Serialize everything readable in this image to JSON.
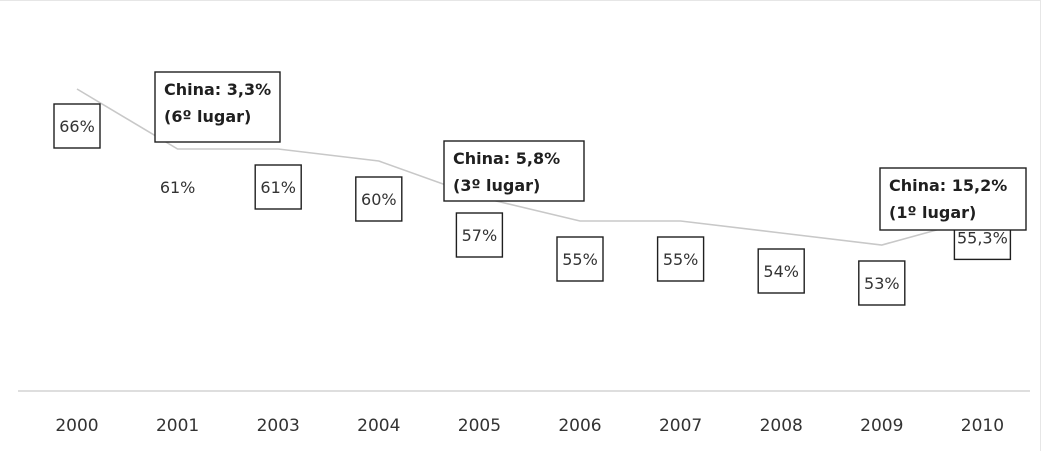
{
  "chart_data": {
    "type": "line",
    "categories": [
      "2000",
      "2001",
      "2003",
      "2004",
      "2005",
      "2006",
      "2007",
      "2008",
      "2009",
      "2010"
    ],
    "values": [
      66,
      61,
      61,
      60,
      57,
      55,
      55,
      54,
      53,
      55.3
    ],
    "data_labels": [
      "66%",
      "61%",
      "61%",
      "60%",
      "57%",
      "55%",
      "55%",
      "54%",
      "53%",
      "55,3%"
    ],
    "boxed_labels": [
      true,
      false,
      true,
      true,
      true,
      true,
      true,
      true,
      true,
      true
    ],
    "annotations": [
      {
        "category": "2001",
        "line1": "China: 3,3%",
        "line2": "(6º lugar)"
      },
      {
        "category": "2005",
        "line1": "China: 5,8%",
        "line2": "(3º lugar)"
      },
      {
        "category": "2009",
        "line1": "China: 15,2%",
        "line2": "(1º lugar)"
      }
    ],
    "title": "",
    "xlabel": "",
    "ylabel": "",
    "grid": false,
    "legend": "none",
    "line_color": "#c8c8c8",
    "axis_color": "#d4d4d4"
  }
}
